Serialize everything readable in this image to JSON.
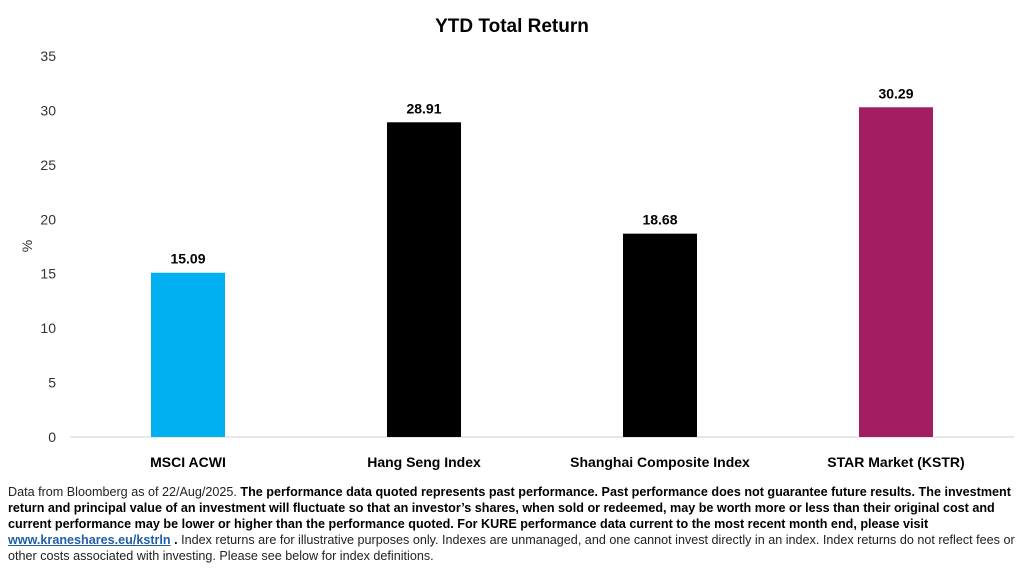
{
  "chart_data": {
    "type": "bar",
    "title": "YTD Total Return",
    "ylabel": "%",
    "xlabel": "",
    "ylim": [
      0,
      35
    ],
    "yticks": [
      0,
      5,
      10,
      15,
      20,
      25,
      30,
      35
    ],
    "grid": false,
    "legend": "none",
    "categories": [
      "MSCI ACWI",
      "Hang Seng Index",
      "Shanghai Composite Index",
      "STAR Market (KSTR)"
    ],
    "values": [
      15.09,
      28.91,
      18.68,
      30.29
    ],
    "value_labels": [
      "15.09",
      "28.91",
      "18.68",
      "30.29"
    ],
    "colors": [
      "#00b0f0",
      "#000000",
      "#000000",
      "#a21d62"
    ]
  },
  "disclaimer": {
    "intro": "Data from Bloomberg as of 22/Aug/2025. ",
    "bold": "The performance data quoted represents past performance. Past performance does not guarantee future results. The investment return and principal value of an investment will fluctuate so that an investor’s shares, when sold or redeemed, may be worth more or less than their original cost and current performance may be lower or higher than the performance quoted. For KURE performance data current to the most recent month end, please visit ",
    "link": "www.kraneshares.eu/kstrln",
    "bold_end": " .",
    "rest": " Index returns are for illustrative purposes only. Indexes are unmanaged, and one cannot invest directly in an index. Index returns do not reflect fees or other costs associated with investing. Please see below for index definitions."
  }
}
